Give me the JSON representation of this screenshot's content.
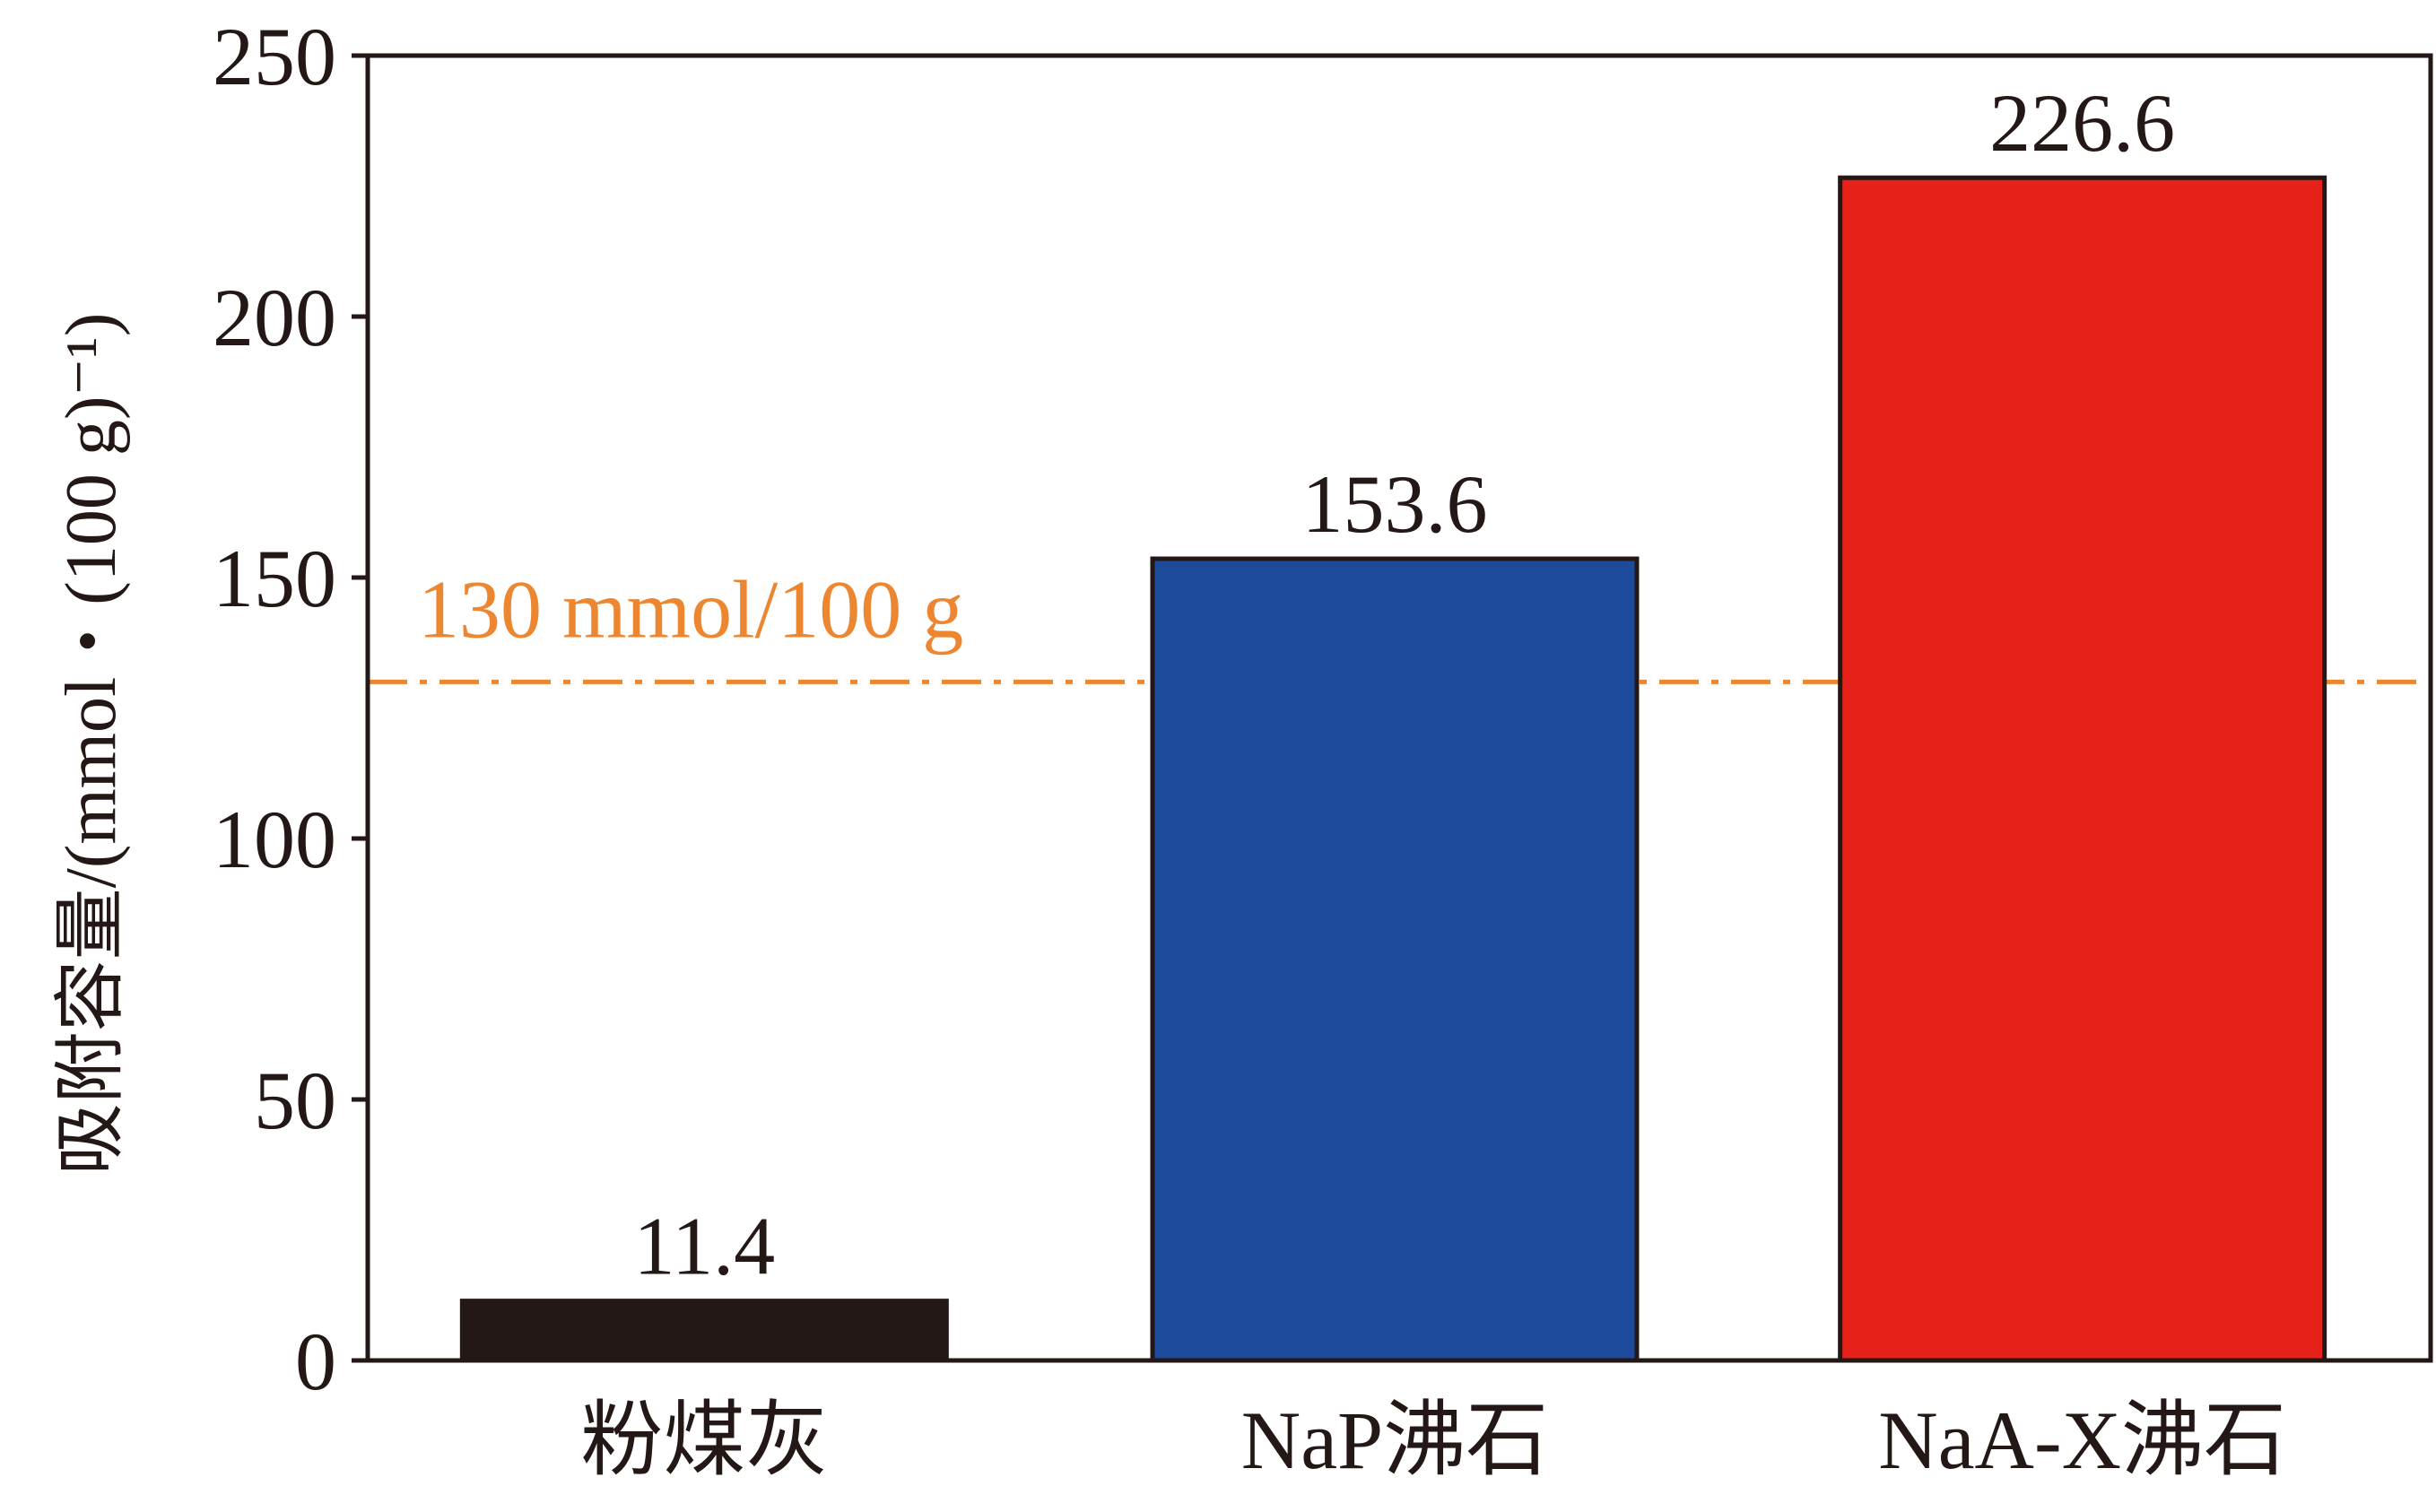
{
  "chart_data": {
    "type": "bar",
    "categories": [
      "粉煤灰",
      "NaP沸石",
      "NaA-X沸石"
    ],
    "values": [
      11.4,
      153.6,
      226.6
    ],
    "value_labels": [
      "11.4",
      "153.6",
      "226.6"
    ],
    "bar_colors": [
      "#231815",
      "#1e4a9c",
      "#e5211a"
    ],
    "title": "",
    "xlabel": "",
    "ylabel": "吸附容量/(mmol・(100 g)⁻¹)",
    "ylim": [
      0,
      250
    ],
    "yticks": [
      0,
      50,
      100,
      150,
      200,
      250
    ],
    "ytick_labels": [
      "0",
      "50",
      "100",
      "150",
      "200",
      "250"
    ],
    "reference_line": {
      "value": 130,
      "label": "130 mmol/100 g",
      "color": "#ec8630",
      "style": "dash-dot"
    },
    "grid": false,
    "legend": "none"
  }
}
